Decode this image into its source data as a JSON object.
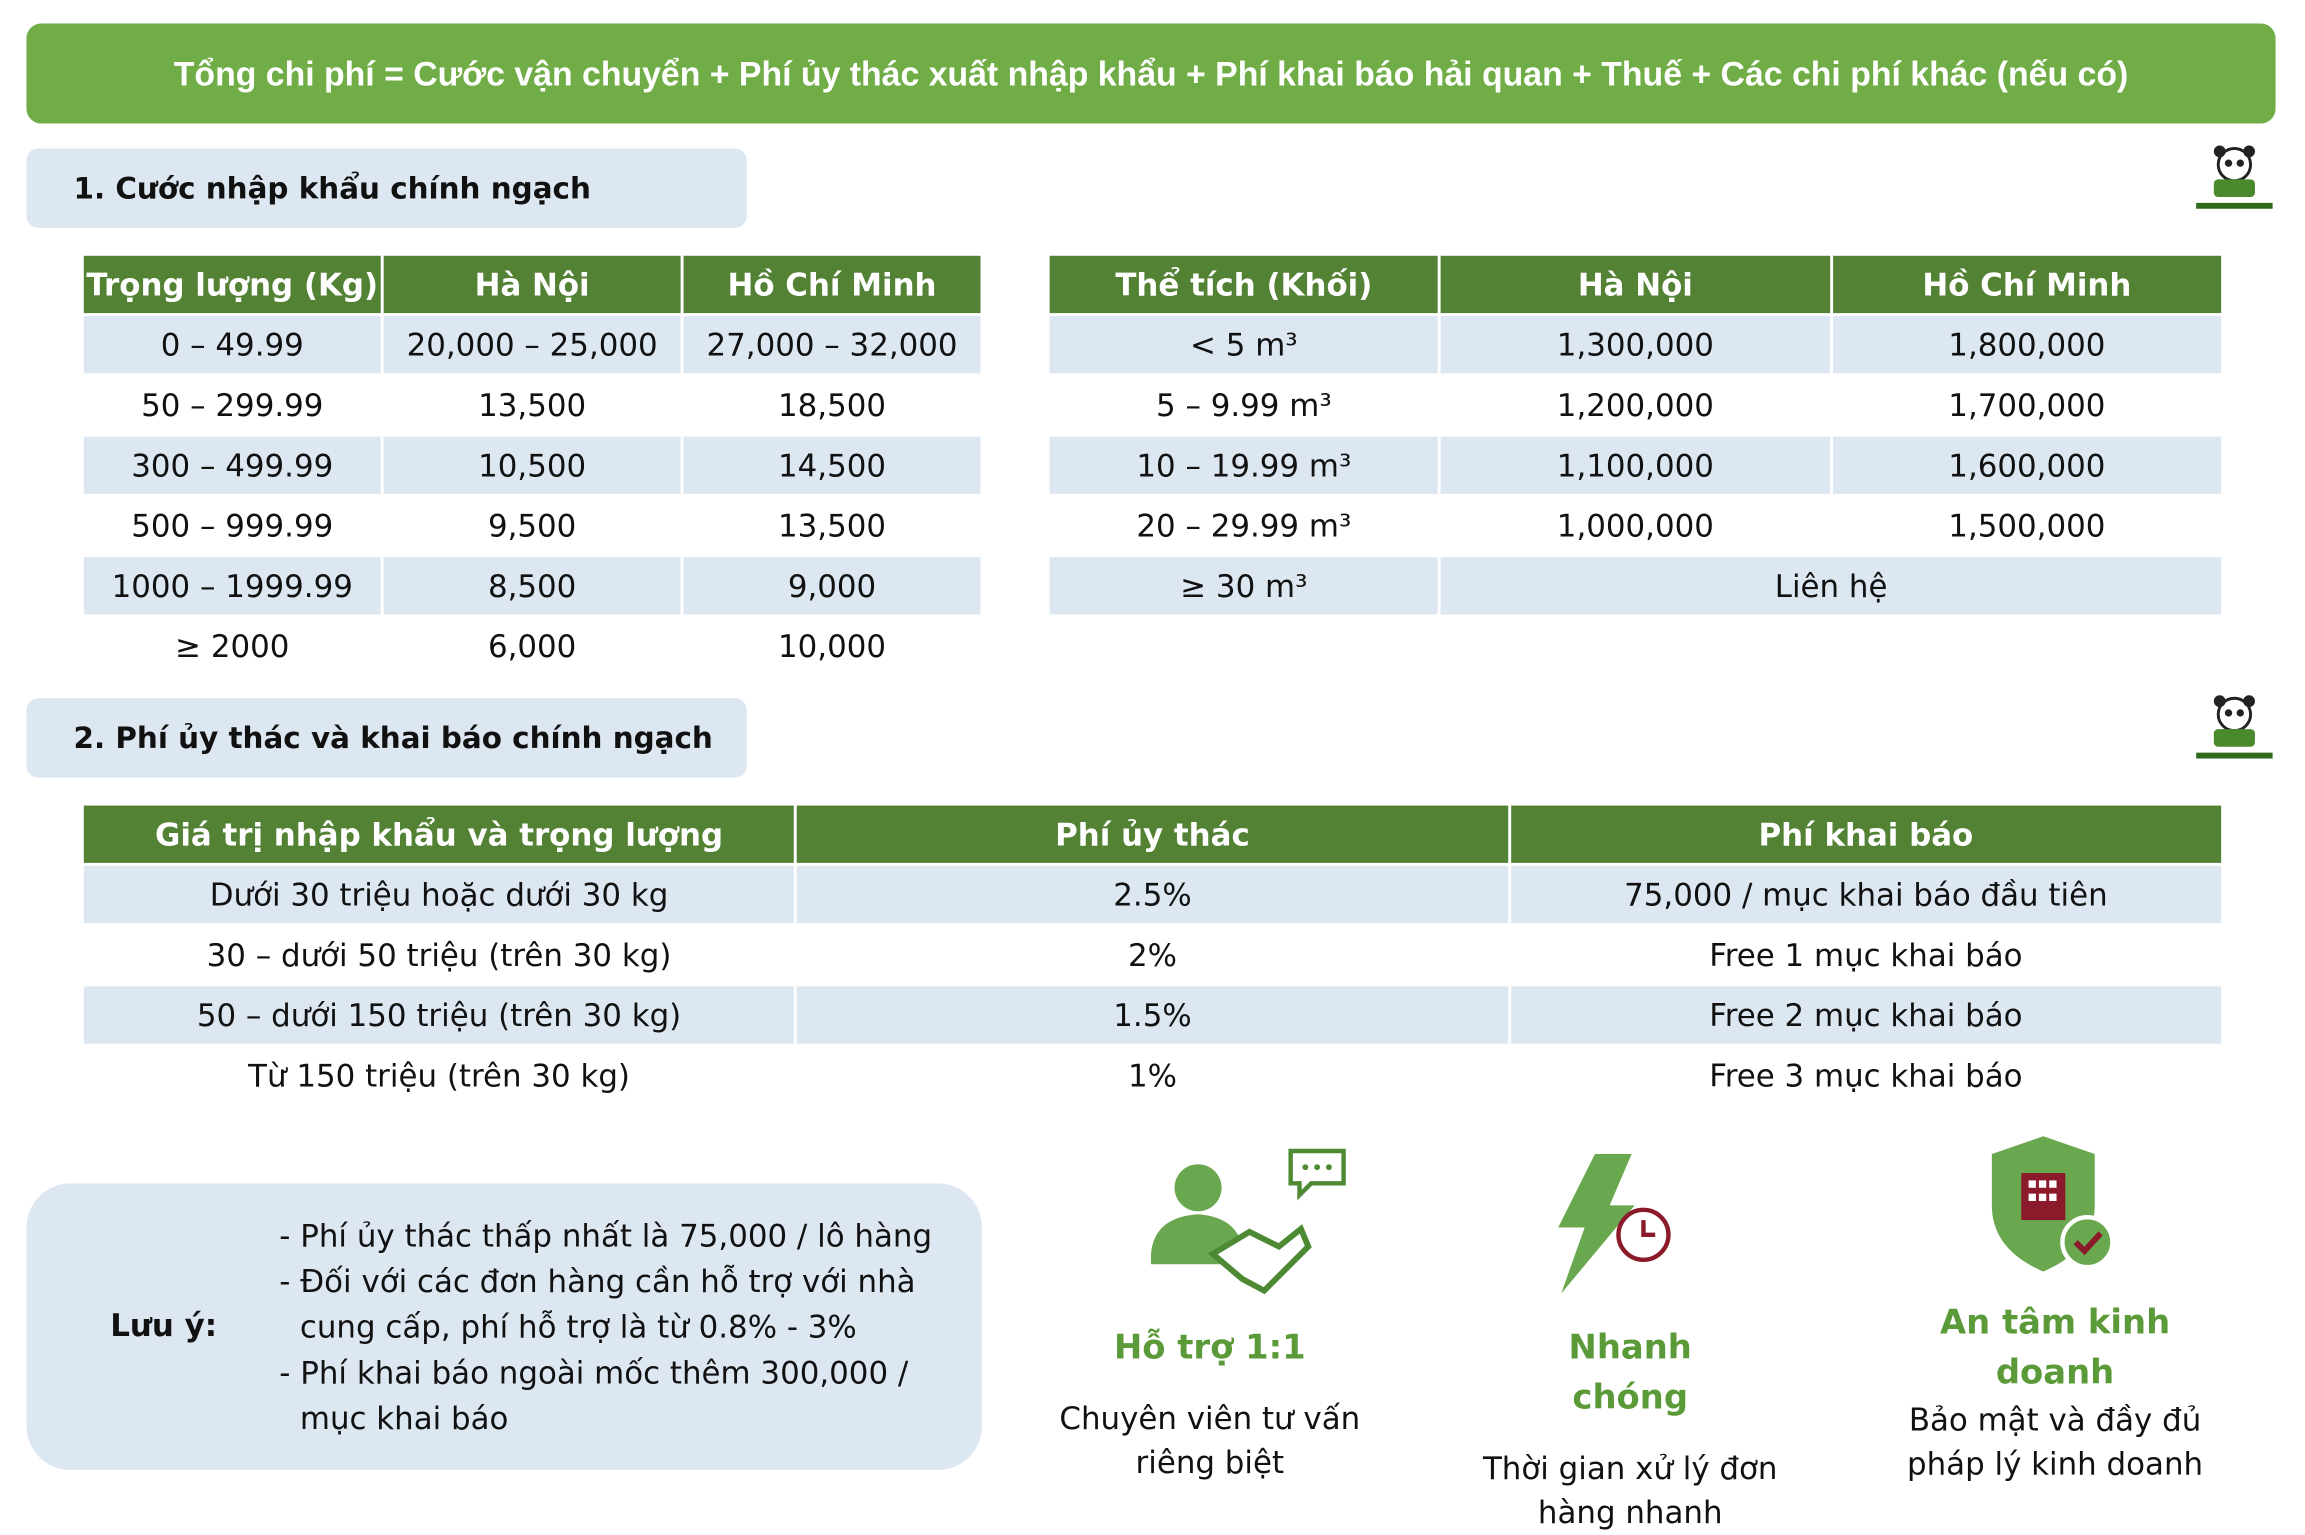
{
  "header": {
    "title": "Tổng chi phí = Cước vận chuyển + Phí ủy thác xuất nhập khẩu + Phí khai báo hải quan + Thuế + Các chi phí khác (nếu có)"
  },
  "section1": {
    "title": "1. Cước nhập khẩu chính ngạch"
  },
  "weight_table": {
    "headers": [
      "Trọng lượng (Kg)",
      "Hà Nội",
      "Hồ Chí Minh"
    ],
    "rows": [
      [
        "0 – 49.99",
        "20,000 – 25,000",
        "27,000 – 32,000"
      ],
      [
        "50 – 299.99",
        "13,500",
        "18,500"
      ],
      [
        "300 – 499.99",
        "10,500",
        "14,500"
      ],
      [
        "500 – 999.99",
        "9,500",
        "13,500"
      ],
      [
        "1000 – 1999.99",
        "8,500",
        "9,000"
      ],
      [
        "≥ 2000",
        "6,000",
        "10,000"
      ]
    ]
  },
  "volume_table": {
    "headers": [
      "Thể tích (Khối)",
      "Hà Nội",
      "Hồ Chí Minh"
    ],
    "rows": [
      [
        "< 5 m³",
        "1,300,000",
        "1,800,000"
      ],
      [
        "5 – 9.99 m³",
        "1,200,000",
        "1,700,000"
      ],
      [
        "10 – 19.99 m³",
        "1,100,000",
        "1,600,000"
      ],
      [
        "20 – 29.99 m³",
        "1,000,000",
        "1,500,000"
      ],
      [
        "≥ 30 m³",
        "Liên hệ"
      ]
    ]
  },
  "section2": {
    "title": "2. Phí ủy thác và khai báo chính ngạch"
  },
  "fee_table": {
    "headers": [
      "Giá trị nhập khẩu và trọng lượng",
      "Phí ủy thác",
      "Phí khai báo"
    ],
    "rows": [
      [
        "Dưới 30 triệu hoặc dưới 30 kg",
        "2.5%",
        "75,000 / mục khai báo đầu tiên"
      ],
      [
        "30 – dưới 50 triệu (trên 30 kg)",
        "2%",
        "Free 1 mục khai báo"
      ],
      [
        "50 – dưới 150 triệu (trên 30 kg)",
        "1.5%",
        "Free 2 mục khai báo"
      ],
      [
        "Từ 150 triệu (trên 30 kg)",
        "1%",
        "Free 3 mục khai báo"
      ]
    ]
  },
  "note": {
    "label": "Lưu ý:",
    "lines": [
      "- Phí ủy thác thấp nhất là 75,000 / lô hàng",
      "- Đối với các đơn hàng cần hỗ trợ với nhà cung cấp, phí hỗ trợ là từ 0.8% - 3%",
      "- Phí khai báo ngoài mốc thêm 300,000 / mục khai báo"
    ]
  },
  "features": [
    {
      "title": "Hỗ trợ 1:1",
      "desc": "Chuyên viên tư vấn riêng biệt"
    },
    {
      "title": "Nhanh chóng",
      "desc": "Thời gian xử lý đơn hàng nhanh"
    },
    {
      "title": "An tâm kinh doanh",
      "desc": "Bảo mật và đầy đủ pháp lý kinh doanh"
    }
  ]
}
